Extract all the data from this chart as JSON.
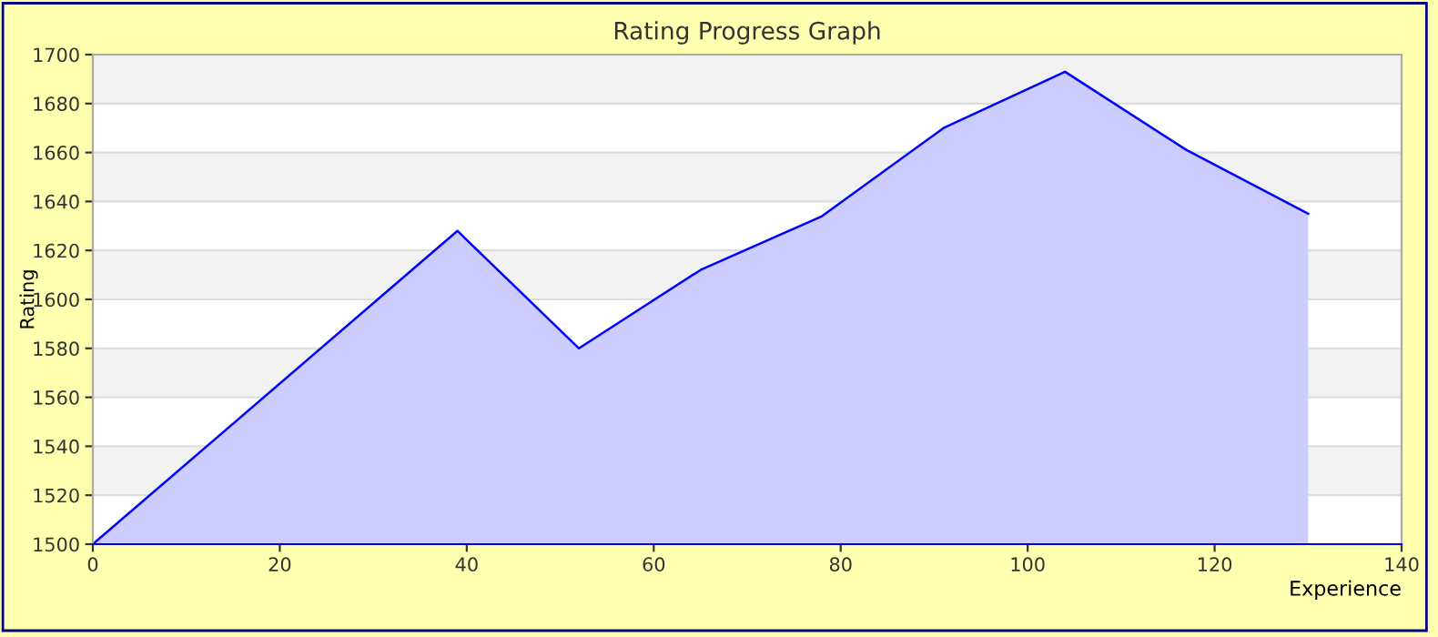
{
  "chart_data": {
    "type": "area",
    "title": "Rating Progress Graph",
    "xlabel": "Experience",
    "ylabel": "Rating",
    "x": [
      0,
      39,
      52,
      65,
      78,
      91,
      104,
      117,
      130
    ],
    "series": [
      {
        "color": "#0000ff",
        "values": [
          1500,
          1628,
          1580,
          1612,
          1634,
          1670,
          1693,
          1661,
          1635
        ]
      }
    ],
    "xlim": [
      0,
      140
    ],
    "xticks": [
      0,
      20,
      40,
      60,
      80,
      100,
      120,
      140
    ],
    "ylim": [
      1500,
      1700
    ],
    "yticks": [
      1500,
      1520,
      1540,
      1560,
      1580,
      1600,
      1620,
      1640,
      1660,
      1680,
      1700
    ],
    "grid": "y"
  }
}
